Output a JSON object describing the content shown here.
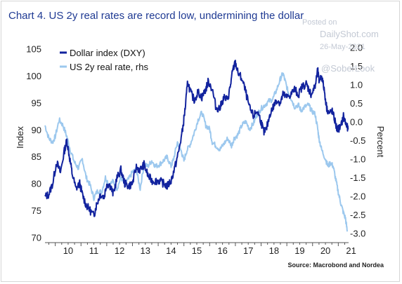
{
  "watermark": {
    "posted": "Posted on",
    "site": "DailyShot.com",
    "date": "26-May-2021",
    "handle": "@SoberLook"
  },
  "chart_data": {
    "type": "line",
    "title": "Chart 4. US 2y real rates are record low, undermining the dollar",
    "source": "Source: Macrobond and Nordea",
    "ylabel": "Index",
    "y2label": "Percent",
    "x_tick_labels": [
      "10",
      "11",
      "12",
      "13",
      "14",
      "15",
      "16",
      "17",
      "18",
      "19",
      "20",
      "21"
    ],
    "xlim": [
      2009.6,
      2021.4
    ],
    "ylim": [
      69,
      106
    ],
    "y2lim": [
      -3.25,
      2.1
    ],
    "y_ticks": [
      70,
      75,
      80,
      85,
      90,
      95,
      100,
      105
    ],
    "y2_ticks": [
      "2.0",
      "1.5",
      "1.0",
      "0.5",
      "0.0",
      "-0.5",
      "-1.0",
      "-1.5",
      "-2.0",
      "-2.5",
      "-3.0"
    ],
    "legend_position": "top-left",
    "colors": {
      "dxy": "#12239e",
      "real": "#9cc8ee"
    },
    "series": [
      {
        "name": "Dollar index (DXY)",
        "axis": "left",
        "points": [
          [
            2009.6,
            77.5
          ],
          [
            2009.75,
            78
          ],
          [
            2009.9,
            80
          ],
          [
            2010.05,
            84
          ],
          [
            2010.2,
            82
          ],
          [
            2010.35,
            86
          ],
          [
            2010.45,
            88
          ],
          [
            2010.55,
            85
          ],
          [
            2010.65,
            82
          ],
          [
            2010.8,
            79
          ],
          [
            2010.95,
            80
          ],
          [
            2011.05,
            78
          ],
          [
            2011.2,
            76
          ],
          [
            2011.35,
            75
          ],
          [
            2011.5,
            74
          ],
          [
            2011.6,
            76
          ],
          [
            2011.75,
            78
          ],
          [
            2011.9,
            77.5
          ],
          [
            2012.0,
            80
          ],
          [
            2012.15,
            79.5
          ],
          [
            2012.25,
            78
          ],
          [
            2012.4,
            81
          ],
          [
            2012.55,
            82.5
          ],
          [
            2012.7,
            80
          ],
          [
            2012.85,
            79.5
          ],
          [
            2013.0,
            80
          ],
          [
            2013.15,
            83
          ],
          [
            2013.3,
            82.5
          ],
          [
            2013.45,
            83.5
          ],
          [
            2013.6,
            81.5
          ],
          [
            2013.75,
            80.5
          ],
          [
            2013.9,
            80.5
          ],
          [
            2014.05,
            80.5
          ],
          [
            2014.2,
            80
          ],
          [
            2014.35,
            79.5
          ],
          [
            2014.5,
            80.5
          ],
          [
            2014.65,
            83
          ],
          [
            2014.8,
            86
          ],
          [
            2014.95,
            90
          ],
          [
            2015.05,
            94
          ],
          [
            2015.15,
            99
          ],
          [
            2015.25,
            97
          ],
          [
            2015.4,
            95.5
          ],
          [
            2015.55,
            97
          ],
          [
            2015.7,
            96
          ],
          [
            2015.85,
            97.5
          ],
          [
            2015.95,
            99
          ],
          [
            2016.1,
            97.5
          ],
          [
            2016.25,
            94
          ],
          [
            2016.4,
            94
          ],
          [
            2016.55,
            96
          ],
          [
            2016.7,
            95.5
          ],
          [
            2016.8,
            98
          ],
          [
            2016.9,
            101
          ],
          [
            2017.0,
            102.5
          ],
          [
            2017.1,
            100.5
          ],
          [
            2017.25,
            99.5
          ],
          [
            2017.4,
            97
          ],
          [
            2017.55,
            94
          ],
          [
            2017.7,
            92.5
          ],
          [
            2017.85,
            93.5
          ],
          [
            2018.0,
            91.5
          ],
          [
            2018.1,
            89.5
          ],
          [
            2018.2,
            90
          ],
          [
            2018.35,
            93
          ],
          [
            2018.5,
            94.5
          ],
          [
            2018.6,
            95.5
          ],
          [
            2018.75,
            95
          ],
          [
            2018.85,
            96.5
          ],
          [
            2019.0,
            96
          ],
          [
            2019.15,
            96.5
          ],
          [
            2019.3,
            97.5
          ],
          [
            2019.45,
            96.5
          ],
          [
            2019.6,
            98
          ],
          [
            2019.75,
            98.5
          ],
          [
            2019.85,
            97.5
          ],
          [
            2019.95,
            96.5
          ],
          [
            2020.1,
            98
          ],
          [
            2020.2,
            101
          ],
          [
            2020.25,
            99
          ],
          [
            2020.35,
            100
          ],
          [
            2020.45,
            97.5
          ],
          [
            2020.55,
            94
          ],
          [
            2020.65,
            93
          ],
          [
            2020.75,
            93.5
          ],
          [
            2020.85,
            92
          ],
          [
            2020.95,
            90
          ],
          [
            2021.1,
            90.5
          ],
          [
            2021.2,
            92.5
          ],
          [
            2021.3,
            91
          ],
          [
            2021.38,
            90
          ]
        ]
      },
      {
        "name": "US 2y real rate, rhs",
        "axis": "right",
        "points": [
          [
            2009.6,
            -0.1
          ],
          [
            2009.75,
            -0.45
          ],
          [
            2009.9,
            -0.55
          ],
          [
            2010.0,
            -0.4
          ],
          [
            2010.15,
            0.05
          ],
          [
            2010.3,
            -0.1
          ],
          [
            2010.45,
            -0.4
          ],
          [
            2010.6,
            -0.8
          ],
          [
            2010.75,
            -1.1
          ],
          [
            2010.9,
            -1.25
          ],
          [
            2011.05,
            -1.0
          ],
          [
            2011.2,
            -1.5
          ],
          [
            2011.35,
            -1.7
          ],
          [
            2011.5,
            -2.05
          ],
          [
            2011.65,
            -1.85
          ],
          [
            2011.8,
            -1.9
          ],
          [
            2011.95,
            -1.5
          ],
          [
            2012.1,
            -1.7
          ],
          [
            2012.25,
            -1.6
          ],
          [
            2012.4,
            -1.8
          ],
          [
            2012.55,
            -1.5
          ],
          [
            2012.7,
            -1.65
          ],
          [
            2012.85,
            -1.55
          ],
          [
            2013.0,
            -1.35
          ],
          [
            2013.15,
            -1.3
          ],
          [
            2013.3,
            -1.8
          ],
          [
            2013.45,
            -1.15
          ],
          [
            2013.6,
            -1.2
          ],
          [
            2013.75,
            -1.05
          ],
          [
            2013.9,
            -1.2
          ],
          [
            2014.05,
            -1.15
          ],
          [
            2014.2,
            -1.05
          ],
          [
            2014.35,
            -0.95
          ],
          [
            2014.5,
            -1.2
          ],
          [
            2014.6,
            -1.0
          ],
          [
            2014.75,
            -0.55
          ],
          [
            2014.9,
            -0.8
          ],
          [
            2015.0,
            -1.05
          ],
          [
            2015.1,
            -0.8
          ],
          [
            2015.25,
            -0.6
          ],
          [
            2015.4,
            -0.3
          ],
          [
            2015.55,
            0.05
          ],
          [
            2015.7,
            0.25
          ],
          [
            2015.85,
            -0.1
          ],
          [
            2016.0,
            -0.2
          ],
          [
            2016.1,
            -0.55
          ],
          [
            2016.25,
            -0.65
          ],
          [
            2016.4,
            -0.75
          ],
          [
            2016.55,
            -0.6
          ],
          [
            2016.7,
            -0.45
          ],
          [
            2016.85,
            -0.65
          ],
          [
            2016.95,
            -0.45
          ],
          [
            2017.1,
            -0.35
          ],
          [
            2017.25,
            -0.1
          ],
          [
            2017.4,
            0.0
          ],
          [
            2017.55,
            -0.2
          ],
          [
            2017.7,
            -0.05
          ],
          [
            2017.85,
            0.2
          ],
          [
            2018.0,
            0.35
          ],
          [
            2018.15,
            0.45
          ],
          [
            2018.3,
            0.55
          ],
          [
            2018.45,
            0.6
          ],
          [
            2018.6,
            0.85
          ],
          [
            2018.75,
            1.15
          ],
          [
            2018.85,
            1.3
          ],
          [
            2018.95,
            1.05
          ],
          [
            2019.05,
            0.8
          ],
          [
            2019.15,
            0.65
          ],
          [
            2019.3,
            0.4
          ],
          [
            2019.45,
            0.45
          ],
          [
            2019.55,
            0.3
          ],
          [
            2019.7,
            0.4
          ],
          [
            2019.85,
            0.45
          ],
          [
            2019.95,
            0.3
          ],
          [
            2020.1,
            0.2
          ],
          [
            2020.2,
            -0.2
          ],
          [
            2020.25,
            -0.45
          ],
          [
            2020.35,
            -0.75
          ],
          [
            2020.5,
            -1.0
          ],
          [
            2020.6,
            -1.2
          ],
          [
            2020.7,
            -1.1
          ],
          [
            2020.8,
            -1.2
          ],
          [
            2020.9,
            -1.55
          ],
          [
            2021.0,
            -1.9
          ],
          [
            2021.1,
            -2.2
          ],
          [
            2021.2,
            -2.45
          ],
          [
            2021.28,
            -2.6
          ],
          [
            2021.35,
            -2.95
          ]
        ]
      }
    ]
  }
}
